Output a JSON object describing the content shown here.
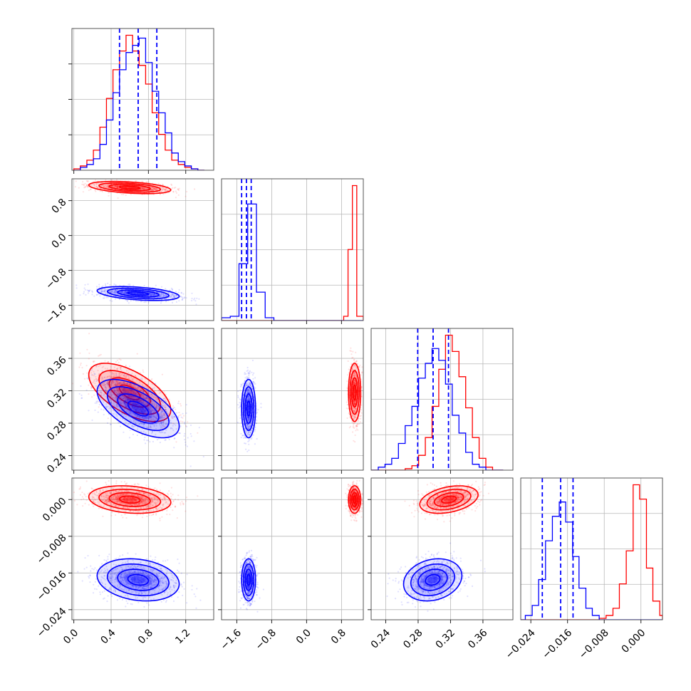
{
  "chart_data": {
    "type": "corner",
    "grid": true,
    "colors": {
      "series_a": "#ff0000",
      "series_b": "#0000ff",
      "quantile_lines": "#0000ff"
    },
    "parameters": [
      {
        "range": [
          -0.02,
          1.5
        ],
        "ticks": [
          0.0,
          0.4,
          0.8,
          1.2
        ],
        "tick_labels": [
          "0.0",
          "0.4",
          "0.8",
          "1.2"
        ]
      },
      {
        "range": [
          -1.95,
          1.3
        ],
        "ticks": [
          -1.6,
          -0.8,
          0.0,
          0.8
        ],
        "tick_labels": [
          "−1.6",
          "−0.8",
          "0.0",
          "0.8"
        ]
      },
      {
        "range": [
          0.222,
          0.397
        ],
        "ticks": [
          0.24,
          0.28,
          0.32,
          0.36
        ],
        "tick_labels": [
          "0.24",
          "0.28",
          "0.32",
          "0.36"
        ]
      },
      {
        "range": [
          -0.0262,
          0.0047
        ],
        "ticks": [
          -0.024,
          -0.016,
          -0.008,
          0.0
        ],
        "tick_labels": [
          "−0.024",
          "−0.016",
          "−0.008",
          "0.000"
        ]
      }
    ],
    "series": [
      {
        "color": "#ff0000",
        "mean": [
          0.6,
          1.1,
          0.318,
          0.0
        ],
        "sd": [
          0.22,
          0.07,
          0.018,
          0.0015
        ],
        "corr": [
          [
            0,
            1,
            -0.4
          ],
          [
            0,
            2,
            -0.6
          ],
          [
            0,
            3,
            -0.2
          ],
          [
            2,
            3,
            0.35
          ]
        ],
        "histograms": [
          {
            "edges": [
              0.0,
              0.07,
              0.14,
              0.21,
              0.28,
              0.35,
              0.42,
              0.49,
              0.56,
              0.63,
              0.7,
              0.77,
              0.84,
              0.91,
              0.98,
              1.05,
              1.12,
              1.19,
              1.26,
              1.33,
              1.4
            ],
            "counts": [
              1,
              3,
              7,
              14,
              30,
              50,
              70,
              83,
              94,
              83,
              73,
              60,
              40,
              25,
              14,
              7,
              4,
              2,
              1,
              0
            ]
          },
          {
            "edges": [
              -1.95,
              -1.75,
              -1.55,
              -1.35,
              -1.15,
              -0.95,
              -0.75,
              -0.55,
              -0.35,
              -0.15,
              0.05,
              0.25,
              0.45,
              0.65,
              0.85,
              0.95,
              1.05,
              1.15,
              1.3
            ],
            "counts": [
              0,
              0,
              0,
              0,
              0,
              0,
              0,
              0,
              0,
              0,
              0,
              0,
              0,
              0,
              3,
              50,
              95,
              3
            ]
          },
          {
            "edges": [
              0.2225,
              0.2308,
              0.2391,
              0.2474,
              0.2557,
              0.264,
              0.2723,
              0.2806,
              0.2889,
              0.2972,
              0.3055,
              0.3138,
              0.3221,
              0.3304,
              0.3387,
              0.347,
              0.3553,
              0.3636,
              0.3719,
              0.3802,
              0.385
            ],
            "counts": [
              0,
              0,
              0,
              0,
              0,
              1,
              3,
              10,
              22,
              43,
              68,
              91,
              80,
              63,
              42,
              22,
              8,
              2,
              0,
              0
            ]
          },
          {
            "edges": [
              -0.0263,
              -0.0252,
              -0.0237,
              -0.0223,
              -0.0208,
              -0.0193,
              -0.0178,
              -0.0164,
              -0.0149,
              -0.0135,
              -0.012,
              -0.0106,
              -0.0091,
              -0.0076,
              -0.0061,
              -0.0047,
              -0.0032,
              -0.0017,
              -0.0003,
              0.0012,
              0.0026,
              0.0041,
              0.0047
            ],
            "counts": [
              0,
              0,
              0,
              0,
              0,
              0,
              0,
              0,
              0,
              0,
              0,
              0,
              1,
              3,
              8,
              25,
              48,
              94,
              84,
              36,
              13,
              3
            ]
          }
        ]
      },
      {
        "color": "#0000ff",
        "mean": [
          0.69,
          -1.33,
          0.298,
          -0.0175
        ],
        "sd": [
          0.22,
          0.08,
          0.018,
          0.0023
        ],
        "corr": [
          [
            0,
            1,
            -0.4
          ],
          [
            0,
            2,
            -0.6
          ],
          [
            0,
            3,
            -0.2
          ],
          [
            2,
            3,
            0.2
          ]
        ],
        "histograms": [
          {
            "edges": [
              0.0,
              0.07,
              0.14,
              0.21,
              0.28,
              0.35,
              0.42,
              0.49,
              0.56,
              0.63,
              0.7,
              0.77,
              0.84,
              0.91,
              0.98,
              1.05,
              1.12,
              1.19,
              1.26,
              1.33,
              1.4
            ],
            "counts": [
              0,
              2,
              4,
              8,
              18,
              35,
              54,
              70,
              82,
              87,
              92,
              75,
              55,
              40,
              26,
              12,
              6,
              3,
              1,
              0
            ]
          },
          {
            "edges": [
              -1.95,
              -1.75,
              -1.55,
              -1.35,
              -1.15,
              -0.95,
              -0.75,
              -0.55,
              -0.35,
              -0.15,
              0.05,
              0.25,
              0.45,
              0.65,
              0.85,
              0.95,
              1.05,
              1.15,
              1.3
            ],
            "counts": [
              2,
              3,
              40,
              82,
              20,
              2,
              0,
              0,
              0,
              0,
              0,
              0,
              0,
              0,
              0,
              0,
              0,
              0
            ]
          },
          {
            "edges": [
              0.2225,
              0.2308,
              0.2391,
              0.2474,
              0.2557,
              0.264,
              0.2723,
              0.2806,
              0.2889,
              0.2972,
              0.3055,
              0.3138,
              0.3221,
              0.3304,
              0.3387,
              0.347,
              0.3553,
              0.3636,
              0.3719,
              0.3802,
              0.385
            ],
            "counts": [
              0,
              2,
              4,
              8,
              18,
              30,
              43,
              62,
              72,
              82,
              74,
              58,
              37,
              25,
              12,
              4,
              2,
              0,
              0,
              0
            ]
          },
          {
            "edges": [
              -0.0263,
              -0.0252,
              -0.0237,
              -0.0223,
              -0.0208,
              -0.0193,
              -0.0178,
              -0.0164,
              -0.0149,
              -0.0135,
              -0.012,
              -0.0106,
              -0.0091,
              -0.0076,
              -0.0061,
              -0.0047,
              -0.0032,
              -0.0017,
              -0.0003,
              0.0012,
              0.0026,
              0.0041,
              0.0047
            ],
            "counts": [
              0,
              3,
              10,
              28,
              55,
              72,
              82,
              68,
              44,
              22,
              8,
              3,
              0,
              0,
              0,
              0,
              0,
              0,
              0,
              0,
              0,
              0
            ]
          }
        ]
      }
    ],
    "quantiles": [
      [
        0.49,
        0.69,
        0.89
      ],
      [
        -1.49,
        -1.38,
        -1.27
      ],
      [
        0.2795,
        0.2985,
        0.3175
      ],
      [
        -0.0215,
        -0.0175,
        -0.0148
      ]
    ]
  }
}
